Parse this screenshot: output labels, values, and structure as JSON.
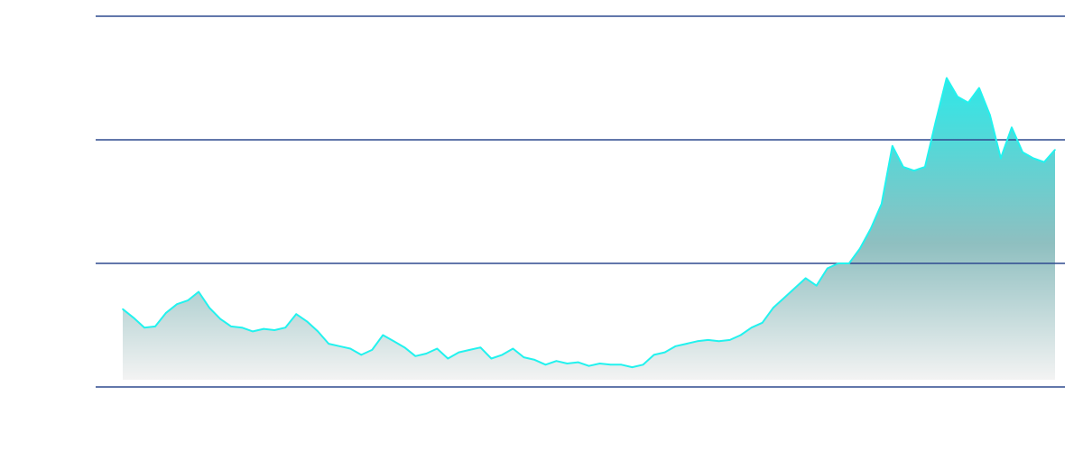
{
  "chart_data": {
    "type": "area",
    "title": "",
    "xlabel": "",
    "ylabel": "",
    "ylim": [
      0,
      3
    ],
    "yticks": [
      0,
      1,
      2,
      3
    ],
    "grid": true,
    "legend": "none",
    "tick_labels_visible": false,
    "colors": {
      "line": "#22f2ee",
      "fill_top": "#2ee8e8",
      "fill_bottom": "#f3f3f3",
      "grid": "#2f4a8f"
    },
    "series": [
      {
        "values": [
          0.63,
          0.56,
          0.48,
          0.49,
          0.6,
          0.67,
          0.7,
          0.77,
          0.64,
          0.55,
          0.49,
          0.48,
          0.45,
          0.47,
          0.46,
          0.48,
          0.59,
          0.53,
          0.45,
          0.35,
          0.33,
          0.31,
          0.26,
          0.3,
          0.42,
          0.37,
          0.32,
          0.25,
          0.27,
          0.31,
          0.23,
          0.28,
          0.3,
          0.32,
          0.23,
          0.26,
          0.31,
          0.24,
          0.22,
          0.18,
          0.21,
          0.19,
          0.2,
          0.17,
          0.19,
          0.18,
          0.18,
          0.16,
          0.18,
          0.26,
          0.28,
          0.33,
          0.35,
          0.37,
          0.38,
          0.37,
          0.38,
          0.42,
          0.48,
          0.52,
          0.64,
          0.72,
          0.8,
          0.88,
          0.82,
          0.96,
          1.0,
          1.0,
          1.12,
          1.28,
          1.48,
          1.95,
          1.78,
          1.75,
          1.78,
          2.15,
          2.5,
          2.35,
          2.3,
          2.42,
          2.2,
          1.85,
          2.1,
          1.9,
          1.85,
          1.82,
          1.92
        ]
      }
    ]
  }
}
